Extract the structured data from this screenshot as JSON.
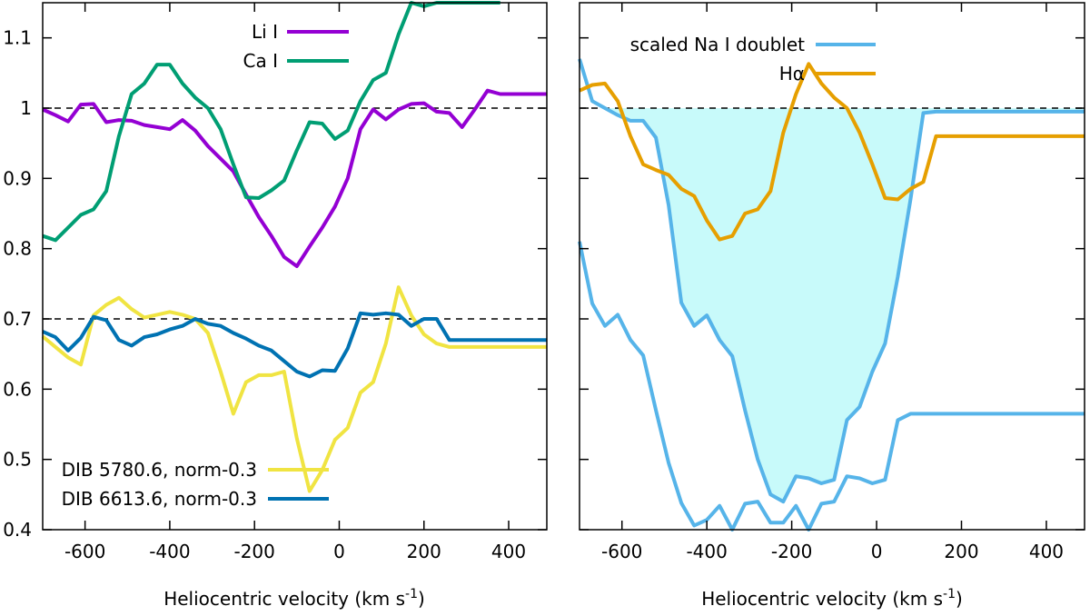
{
  "chart_data": [
    {
      "type": "line",
      "panel": "left",
      "xlabel": "Heliocentric velocity (km s",
      "xlabel_sup": "-1",
      "xlabel_tail": ")",
      "xlim": [
        -700,
        490
      ],
      "ylim": [
        0.4,
        1.15
      ],
      "xticks": [
        -600,
        -400,
        -200,
        0,
        200,
        400
      ],
      "yticks": [
        0.4,
        0.5,
        0.6,
        0.7,
        0.8,
        0.9,
        1.0,
        1.1
      ],
      "ytick_labels": [
        "0.4",
        "0.5",
        "0.6",
        "0.7",
        "0.8",
        "0.9",
        "1",
        "1.1"
      ],
      "reference_lines": [
        1.0,
        0.7
      ],
      "grid": false,
      "series": [
        {
          "name": "Li I",
          "color": "#9400d3",
          "legend_pos": "top-center",
          "x": [
            -700,
            -670,
            -640,
            -610,
            -580,
            -550,
            -520,
            -490,
            -460,
            -430,
            -400,
            -370,
            -340,
            -310,
            -280,
            -250,
            -220,
            -190,
            -160,
            -130,
            -100,
            -70,
            -40,
            -10,
            20,
            50,
            80,
            110,
            140,
            170,
            200,
            230,
            260,
            290,
            320,
            350,
            380,
            410,
            440,
            470,
            490
          ],
          "y": [
            0.998,
            0.99,
            0.981,
            1.005,
            1.006,
            0.98,
            0.983,
            0.982,
            0.976,
            0.973,
            0.97,
            0.983,
            0.968,
            0.946,
            0.928,
            0.91,
            0.877,
            0.845,
            0.818,
            0.788,
            0.775,
            0.803,
            0.83,
            0.86,
            0.9,
            0.97,
            0.998,
            0.984,
            0.998,
            1.006,
            1.007,
            0.995,
            0.993,
            0.973,
            0.998,
            1.025,
            1.02,
            1.02,
            1.02,
            1.02,
            1.02
          ]
        },
        {
          "name": "Ca I",
          "color": "#009e73",
          "legend_pos": "top-center",
          "x": [
            -700,
            -670,
            -640,
            -610,
            -580,
            -550,
            -520,
            -490,
            -460,
            -430,
            -400,
            -370,
            -340,
            -310,
            -280,
            -250,
            -220,
            -190,
            -160,
            -130,
            -100,
            -70,
            -40,
            -10,
            20,
            50,
            80,
            110,
            140,
            170,
            200,
            230,
            260,
            290,
            320,
            350,
            380
          ],
          "y": [
            0.818,
            0.812,
            0.83,
            0.848,
            0.856,
            0.882,
            0.96,
            1.02,
            1.035,
            1.062,
            1.062,
            1.035,
            1.015,
            1.0,
            0.97,
            0.92,
            0.873,
            0.872,
            0.883,
            0.897,
            0.94,
            0.98,
            0.978,
            0.956,
            0.968,
            1.01,
            1.04,
            1.05,
            1.105,
            1.15,
            1.145,
            1.15,
            1.15,
            1.15,
            1.15,
            1.15,
            1.15
          ]
        },
        {
          "name": "DIB 5780.6, norm-0.3",
          "color": "#f0e442",
          "legend_pos": "bottom-left",
          "x": [
            -700,
            -670,
            -640,
            -610,
            -580,
            -550,
            -520,
            -490,
            -460,
            -430,
            -400,
            -370,
            -340,
            -310,
            -280,
            -250,
            -220,
            -190,
            -160,
            -130,
            -100,
            -70,
            -40,
            -10,
            20,
            50,
            80,
            110,
            140,
            170,
            200,
            230,
            260,
            290,
            320,
            350,
            380,
            410,
            440,
            470,
            490
          ],
          "y": [
            0.675,
            0.66,
            0.645,
            0.635,
            0.705,
            0.72,
            0.73,
            0.714,
            0.702,
            0.706,
            0.71,
            0.706,
            0.7,
            0.68,
            0.625,
            0.565,
            0.61,
            0.62,
            0.62,
            0.625,
            0.53,
            0.455,
            0.485,
            0.528,
            0.545,
            0.595,
            0.61,
            0.665,
            0.745,
            0.705,
            0.678,
            0.665,
            0.66,
            0.66,
            0.66,
            0.66,
            0.66,
            0.66,
            0.66,
            0.66,
            0.66
          ]
        },
        {
          "name": "DIB 6613.6, norm-0.3",
          "color": "#0072b2",
          "legend_pos": "bottom-left",
          "x": [
            -700,
            -670,
            -640,
            -610,
            -580,
            -550,
            -520,
            -490,
            -460,
            -430,
            -400,
            -370,
            -340,
            -310,
            -280,
            -250,
            -220,
            -190,
            -160,
            -130,
            -100,
            -70,
            -40,
            -10,
            20,
            50,
            80,
            110,
            140,
            170,
            200,
            230,
            260,
            290,
            320,
            350,
            380,
            410,
            440,
            470,
            490
          ],
          "y": [
            0.682,
            0.674,
            0.655,
            0.673,
            0.703,
            0.698,
            0.67,
            0.662,
            0.674,
            0.678,
            0.685,
            0.69,
            0.7,
            0.693,
            0.69,
            0.68,
            0.672,
            0.662,
            0.655,
            0.64,
            0.625,
            0.618,
            0.627,
            0.626,
            0.658,
            0.708,
            0.706,
            0.708,
            0.706,
            0.69,
            0.7,
            0.7,
            0.67,
            0.67,
            0.67,
            0.67,
            0.67,
            0.67,
            0.67,
            0.67,
            0.67
          ]
        }
      ]
    },
    {
      "type": "line",
      "panel": "right",
      "xlabel": "Heliocentric velocity (km s",
      "xlabel_sup": "-1",
      "xlabel_tail": ")",
      "xlim": [
        -700,
        490
      ],
      "ylim": [
        0.4,
        1.15
      ],
      "xticks": [
        -600,
        -400,
        -200,
        0,
        200,
        400
      ],
      "reference_lines": [
        1.0
      ],
      "grid": false,
      "fill": {
        "series": "scaled Na I doublet",
        "between": 1.0,
        "color": "#c8fafa"
      },
      "series": [
        {
          "name": "scaled Na I doublet",
          "color": "#56b4e9",
          "legend_pos": "top-center",
          "x": [
            -700,
            -670,
            -640,
            -610,
            -580,
            -550,
            -520,
            -490,
            -460,
            -430,
            -400,
            -370,
            -340,
            -310,
            -280,
            -250,
            -220,
            -190,
            -160,
            -130,
            -100,
            -70,
            -40,
            -10,
            20,
            50,
            80,
            110,
            140,
            170,
            200,
            230,
            260,
            290,
            320,
            350,
            380,
            410,
            440,
            470,
            490
          ],
          "y": [
            1.07,
            1.01,
            1.0,
            0.99,
            0.982,
            0.982,
            0.958,
            0.862,
            0.723,
            0.69,
            0.705,
            0.67,
            0.647,
            0.57,
            0.5,
            0.45,
            0.44,
            0.476,
            0.473,
            0.466,
            0.471,
            0.556,
            0.575,
            0.625,
            0.665,
            0.76,
            0.87,
            0.993,
            0.995,
            0.995,
            0.995,
            0.995,
            0.995,
            0.995,
            0.995,
            0.995,
            0.995,
            0.995,
            0.995,
            0.995,
            0.995
          ]
        },
        {
          "name": "Hα",
          "color": "#e69f00",
          "legend_pos": "top-center",
          "x": [
            -700,
            -670,
            -640,
            -610,
            -580,
            -550,
            -520,
            -490,
            -460,
            -430,
            -400,
            -370,
            -340,
            -310,
            -280,
            -250,
            -220,
            -190,
            -160,
            -130,
            -100,
            -70,
            -40,
            -10,
            20,
            50,
            80,
            110,
            140,
            170,
            200,
            230,
            260,
            290,
            320,
            350,
            380,
            410,
            440,
            470,
            490
          ],
          "y": [
            1.025,
            1.033,
            1.035,
            1.01,
            0.96,
            0.92,
            0.912,
            0.905,
            0.885,
            0.875,
            0.84,
            0.813,
            0.818,
            0.85,
            0.856,
            0.882,
            0.965,
            1.02,
            1.063,
            1.035,
            1.015,
            1.0,
            0.965,
            0.92,
            0.872,
            0.87,
            0.885,
            0.895,
            0.96,
            0.96,
            0.96,
            0.96,
            0.96,
            0.96,
            0.96,
            0.96,
            0.96,
            0.96,
            0.96,
            0.96,
            0.96
          ]
        },
        {
          "name": "",
          "color": "#56b4e9",
          "legend_pos": "none",
          "x": [
            -700,
            -670,
            -640,
            -610,
            -580,
            -550,
            -520,
            -490,
            -460,
            -430,
            -400,
            -370,
            -340,
            -310,
            -280,
            -250,
            -220,
            -190,
            -160,
            -130,
            -100,
            -70,
            -40,
            -10,
            20,
            50,
            80,
            110,
            140,
            170,
            200,
            230,
            260,
            290,
            320,
            350,
            380,
            410,
            440,
            470,
            490
          ],
          "y": [
            0.81,
            0.722,
            0.69,
            0.706,
            0.67,
            0.648,
            0.57,
            0.495,
            0.438,
            0.406,
            0.414,
            0.434,
            0.4,
            0.437,
            0.44,
            0.41,
            0.41,
            0.434,
            0.4,
            0.437,
            0.44,
            0.476,
            0.473,
            0.466,
            0.471,
            0.556,
            0.565,
            0.565,
            0.565,
            0.565,
            0.565,
            0.565,
            0.565,
            0.565,
            0.565,
            0.565,
            0.565,
            0.565,
            0.565,
            0.565,
            0.565
          ]
        }
      ]
    }
  ]
}
